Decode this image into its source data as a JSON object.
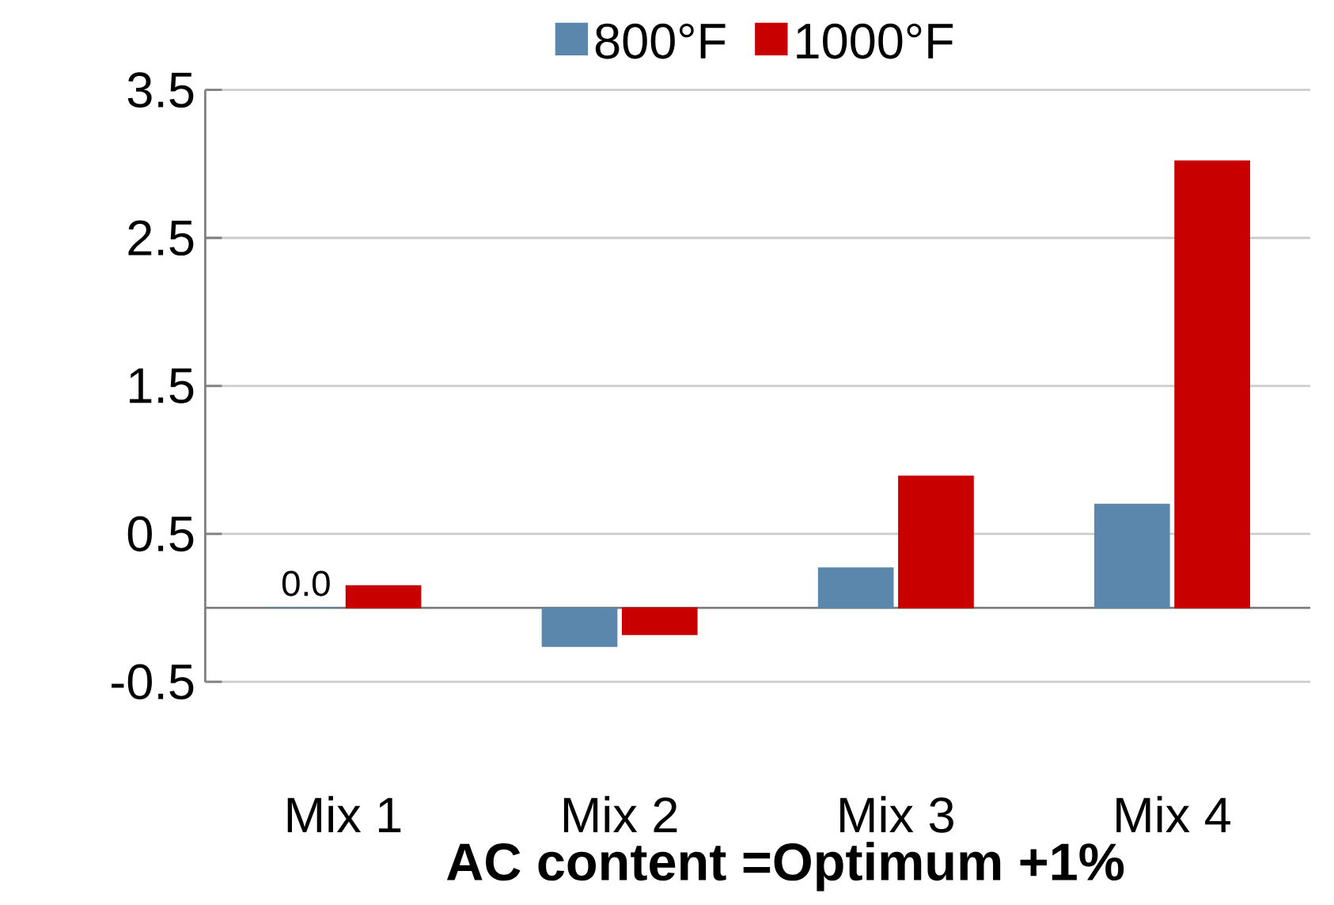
{
  "chart_data": {
    "type": "bar",
    "xlabel": "AC content =Optimum +1%",
    "categories": [
      "Mix 1",
      "Mix 2",
      "Mix 3",
      "Mix 4"
    ],
    "series": [
      {
        "name": "800°F",
        "color": "#5b87ad",
        "values": [
          0.0,
          -0.26,
          0.27,
          0.7
        ],
        "value_labels": [
          "0.0",
          null,
          null,
          null
        ]
      },
      {
        "name": "1000°F",
        "color": "#c80000",
        "values": [
          0.15,
          -0.18,
          0.89,
          3.02
        ]
      }
    ],
    "ylim": [
      -0.5,
      3.5
    ],
    "yticks": [
      -0.5,
      0.5,
      1.5,
      2.5,
      3.5
    ],
    "grid": "y",
    "legend": "top"
  }
}
